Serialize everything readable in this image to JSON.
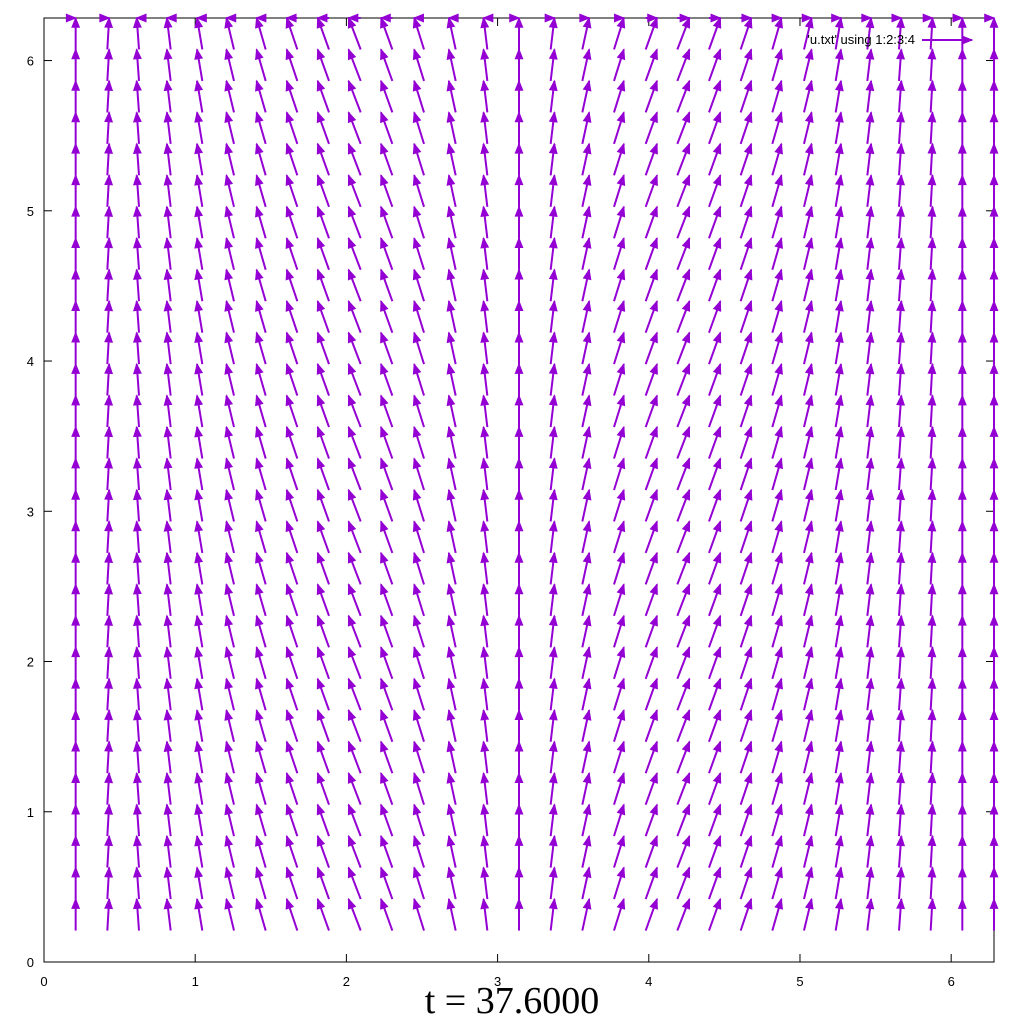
{
  "caption": "t = 37.6000",
  "legend": {
    "label": "'u.txt' using 1:2:3:4"
  },
  "colors": {
    "vector": "#9400d3",
    "axis": "#000000"
  },
  "chart_data": {
    "type": "vector-field",
    "title": "",
    "xlabel": "",
    "ylabel": "",
    "xlim": [
      0,
      6.2832
    ],
    "ylim": [
      0,
      6.2832
    ],
    "xticks": [
      "0",
      "1",
      "2",
      "3",
      "4",
      "5",
      "6"
    ],
    "yticks": [
      "0",
      "1",
      "2",
      "3",
      "4",
      "5",
      "6"
    ],
    "grid": false,
    "legend_position": "top-right",
    "series": [
      {
        "name": "'u.txt' using 1:2:3:4",
        "columns": 30,
        "rows": 30,
        "x_values": [
          0.2094,
          0.4189,
          0.6283,
          0.8378,
          1.0472,
          1.2566,
          1.4661,
          1.6755,
          1.885,
          2.0944,
          2.3038,
          2.5133,
          2.7227,
          2.9322,
          3.1416,
          3.351,
          3.5605,
          3.7699,
          3.9794,
          4.1888,
          4.3982,
          4.6077,
          4.8171,
          5.0265,
          5.236,
          5.4454,
          5.6549,
          5.8643,
          6.0737,
          6.2832
        ],
        "y_values": [
          0.2094,
          0.4189,
          0.6283,
          0.8378,
          1.0472,
          1.2566,
          1.4661,
          1.6755,
          1.885,
          2.0944,
          2.3038,
          2.5133,
          2.7227,
          2.9322,
          3.1416,
          3.351,
          3.5605,
          3.7699,
          3.9794,
          4.1888,
          4.3982,
          4.6077,
          4.8171,
          5.0265,
          5.236,
          5.4454,
          5.6549,
          5.8643,
          6.0737,
          6.2832
        ],
        "dx_by_column": [
          0.0,
          0.012,
          -0.015,
          -0.025,
          -0.035,
          -0.05,
          -0.06,
          -0.07,
          -0.075,
          -0.08,
          -0.075,
          -0.065,
          -0.045,
          -0.025,
          0.0,
          0.025,
          0.045,
          0.065,
          0.075,
          0.08,
          0.075,
          0.07,
          0.06,
          0.05,
          0.035,
          0.025,
          0.015,
          0.012,
          0.0,
          0.0
        ],
        "dy": 0.2094
      }
    ]
  }
}
